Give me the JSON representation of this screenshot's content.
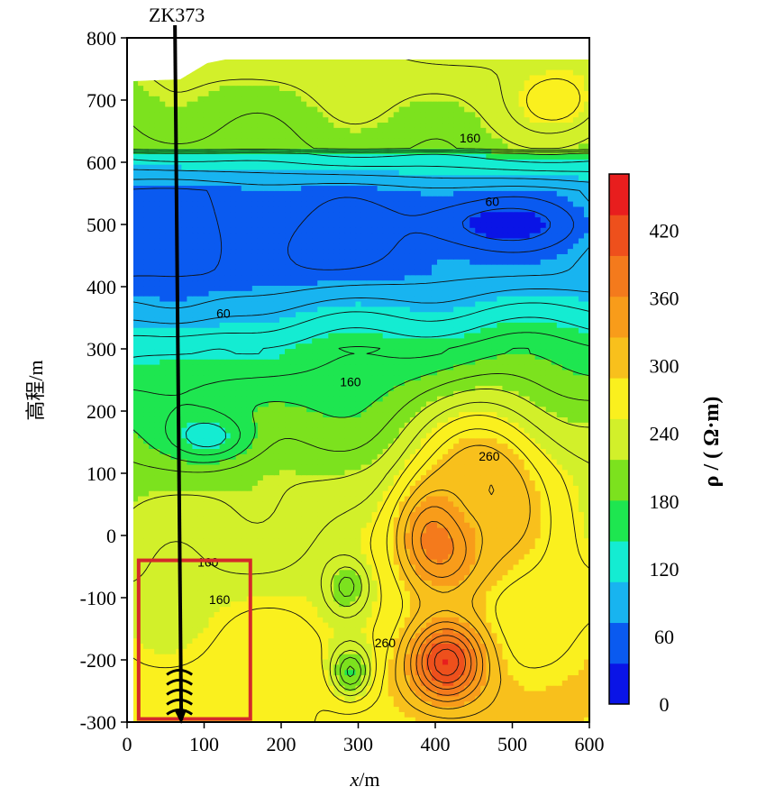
{
  "chart_data": {
    "type": "heatmap",
    "subtype": "contour resistivity section",
    "xlabel_italic": "x",
    "xlabel_unit": "/m",
    "ylabel": "高程/m",
    "colorbar_label": "ρ / ( Ω·m)",
    "xlim": [
      0,
      600
    ],
    "ylim": [
      -300,
      800
    ],
    "x_ticks": [
      "0",
      "100",
      "200",
      "300",
      "400",
      "500",
      "600"
    ],
    "y_ticks": [
      "-300",
      "-200",
      "-100",
      "0",
      "100",
      "200",
      "300",
      "400",
      "500",
      "600",
      "700",
      "800"
    ],
    "colorbar_ticks": [
      "0",
      "60",
      "120",
      "180",
      "240",
      "300",
      "360",
      "420"
    ],
    "colorbar_range": [
      0,
      470
    ],
    "colormap": [
      "#0a14e6",
      "#0a5af0",
      "#18b4f0",
      "#14ecd2",
      "#1ee650",
      "#7ce21e",
      "#d2f02a",
      "#faf01e",
      "#f8c01c",
      "#f89c1a",
      "#f47a1c",
      "#ee501c",
      "#e81e1e"
    ],
    "contour_labels": [
      {
        "text": "160",
        "x": 445,
        "y": 632
      },
      {
        "text": "60",
        "x": 474,
        "y": 530
      },
      {
        "text": "60",
        "x": 125,
        "y": 350
      },
      {
        "text": "160",
        "x": 290,
        "y": 240
      },
      {
        "text": "260",
        "x": 470,
        "y": 120
      },
      {
        "text": "160",
        "x": 105,
        "y": -50
      },
      {
        "text": "160",
        "x": 120,
        "y": -110
      },
      {
        "text": "260",
        "x": 335,
        "y": -180
      }
    ],
    "well": {
      "name": "ZK373",
      "x": 68,
      "y_top": 800,
      "y_bottom": -300
    },
    "highlight_box": {
      "x0": 15,
      "x1": 160,
      "y0": -295,
      "y1": -40,
      "color": "#d42a2a"
    },
    "features": [
      {
        "kind": "low",
        "x": 470,
        "y": 500,
        "rho": 25,
        "sx": 110,
        "sy": 38
      },
      {
        "kind": "low",
        "x": 230,
        "y": 470,
        "rho": 55,
        "sx": 150,
        "sy": 55
      },
      {
        "kind": "low",
        "x": 60,
        "y": 420,
        "rho": 60,
        "sx": 60,
        "sy": 90
      },
      {
        "kind": "high",
        "x": 410,
        "y": 0,
        "rho": 430,
        "sx": 55,
        "sy": 85
      },
      {
        "kind": "high",
        "x": 415,
        "y": -205,
        "rho": 430,
        "sx": 48,
        "sy": 65
      },
      {
        "kind": "high",
        "x": 470,
        "y": 80,
        "rho": 320,
        "sx": 90,
        "sy": 140
      },
      {
        "kind": "high",
        "x": 560,
        "y": 700,
        "rho": 270,
        "sx": 55,
        "sy": 50
      },
      {
        "kind": "low",
        "x": 290,
        "y": -220,
        "rho": 180,
        "sx": 25,
        "sy": 40
      },
      {
        "kind": "low",
        "x": 285,
        "y": -80,
        "rho": 190,
        "sx": 25,
        "sy": 40
      },
      {
        "kind": "low",
        "x": 110,
        "y": 160,
        "rho": 130,
        "sx": 55,
        "sy": 40
      }
    ]
  }
}
